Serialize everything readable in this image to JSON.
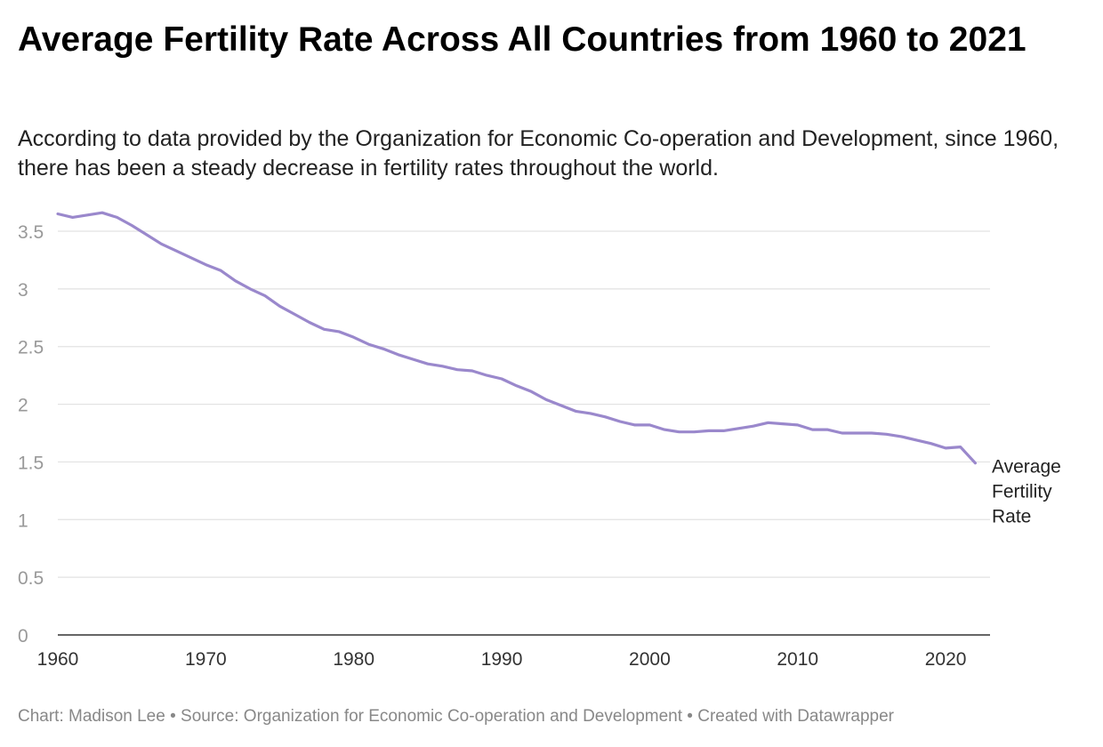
{
  "title": "Average Fertility Rate Across All Countries from 1960 to 2021",
  "subtitle": "According to data provided by the Organization for Economic Co-operation and Development, since 1960, there has been a steady decrease in fertility rates throughout the world.",
  "footer": {
    "credit": "Chart: Madison Lee",
    "separator": " • ",
    "source": "Source: Organization for Economic Co-operation and Development",
    "tool": "Created with Datawrapper"
  },
  "colors": {
    "line": "#9a88cc",
    "grid": "#e2e2e2",
    "axis": "#333333"
  },
  "chart_data": {
    "type": "line",
    "xlim": [
      1960,
      2023
    ],
    "ylim": [
      0,
      3.5
    ],
    "x_ticks": [
      "1960",
      "1970",
      "1980",
      "1990",
      "2000",
      "2010",
      "2020"
    ],
    "y_ticks": [
      "0",
      "0.5",
      "1",
      "1.5",
      "2",
      "2.5",
      "3",
      "3.5"
    ],
    "grid": true,
    "series": [
      {
        "name": "Average Fertility Rate",
        "label_lines": [
          "Average",
          "Fertility",
          "Rate"
        ],
        "x": [
          1960,
          1961,
          1962,
          1963,
          1964,
          1965,
          1966,
          1967,
          1968,
          1969,
          1970,
          1971,
          1972,
          1973,
          1974,
          1975,
          1976,
          1977,
          1978,
          1979,
          1980,
          1981,
          1982,
          1983,
          1984,
          1985,
          1986,
          1987,
          1988,
          1989,
          1990,
          1991,
          1992,
          1993,
          1994,
          1995,
          1996,
          1997,
          1998,
          1999,
          2000,
          2001,
          2002,
          2003,
          2004,
          2005,
          2006,
          2007,
          2008,
          2009,
          2010,
          2011,
          2012,
          2013,
          2014,
          2015,
          2016,
          2017,
          2018,
          2019,
          2020,
          2021,
          2022
        ],
        "y": [
          3.65,
          3.62,
          3.64,
          3.66,
          3.62,
          3.55,
          3.47,
          3.39,
          3.33,
          3.27,
          3.21,
          3.16,
          3.07,
          3.0,
          2.94,
          2.85,
          2.78,
          2.71,
          2.65,
          2.63,
          2.58,
          2.52,
          2.48,
          2.43,
          2.39,
          2.35,
          2.33,
          2.3,
          2.29,
          2.25,
          2.22,
          2.16,
          2.11,
          2.04,
          1.99,
          1.94,
          1.92,
          1.89,
          1.85,
          1.82,
          1.82,
          1.78,
          1.76,
          1.76,
          1.77,
          1.77,
          1.79,
          1.81,
          1.84,
          1.83,
          1.82,
          1.78,
          1.78,
          1.75,
          1.75,
          1.75,
          1.74,
          1.72,
          1.69,
          1.66,
          1.62,
          1.63,
          1.49
        ]
      }
    ]
  }
}
